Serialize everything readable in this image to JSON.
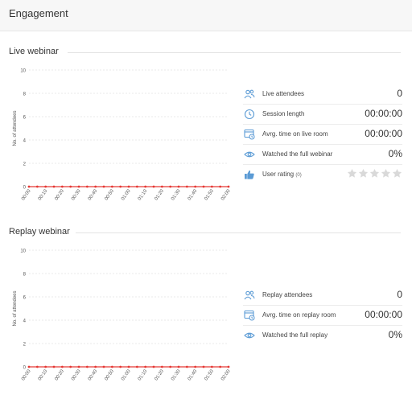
{
  "header": {
    "title": "Engagement"
  },
  "live": {
    "title": "Live webinar",
    "stats": [
      {
        "icon": "users-icon",
        "label": "Live attendees",
        "value": "0"
      },
      {
        "icon": "clock-icon",
        "label": "Session length",
        "value": "00:00:00"
      },
      {
        "icon": "browser-clock-icon",
        "label": "Avrg. time on live room",
        "value": "00:00:00"
      },
      {
        "icon": "eye-icon",
        "label": "Watched the full webinar",
        "value": "0%"
      }
    ],
    "rating": {
      "icon": "thumbs-up-icon",
      "label": "User rating",
      "count": "(0)",
      "stars": 0,
      "max": 5
    }
  },
  "replay": {
    "title": "Replay webinar",
    "stats": [
      {
        "icon": "users-icon",
        "label": "Replay attendees",
        "value": "0"
      },
      {
        "icon": "browser-clock-icon",
        "label": "Avrg. time on replay room",
        "value": "00:00:00"
      },
      {
        "icon": "eye-icon",
        "label": "Watched the full replay",
        "value": "0%"
      }
    ]
  },
  "colors": {
    "accent": "#5b9bd5",
    "line": "#e53935",
    "star": "#d9d9d9"
  },
  "chart_data": [
    {
      "type": "line",
      "title": "",
      "xlabel": "",
      "ylabel": "No. of attendees",
      "x": [
        "00:00",
        "00:10",
        "00:20",
        "00:30",
        "00:40",
        "00:50",
        "01:00",
        "01:10",
        "01:20",
        "01:30",
        "01:40",
        "01:50",
        "02:00"
      ],
      "y_ticks": [
        0,
        2,
        4,
        6,
        8,
        10
      ],
      "ylim": [
        0,
        10
      ],
      "series": [
        {
          "values": [
            0,
            0,
            0,
            0,
            0,
            0,
            0,
            0,
            0,
            0,
            0,
            0,
            0
          ]
        }
      ],
      "grid": true,
      "points_per_interval": 2
    },
    {
      "type": "line",
      "title": "",
      "xlabel": "",
      "ylabel": "No. of attendees",
      "x": [
        "00:00",
        "00:10",
        "00:20",
        "00:30",
        "00:40",
        "00:50",
        "01:00",
        "01:10",
        "01:20",
        "01:30",
        "01:40",
        "01:50",
        "02:00"
      ],
      "y_ticks": [
        0,
        2,
        4,
        6,
        8,
        10
      ],
      "ylim": [
        0,
        10
      ],
      "series": [
        {
          "values": [
            0,
            0,
            0,
            0,
            0,
            0,
            0,
            0,
            0,
            0,
            0,
            0,
            0
          ]
        }
      ],
      "grid": true,
      "points_per_interval": 2
    }
  ]
}
